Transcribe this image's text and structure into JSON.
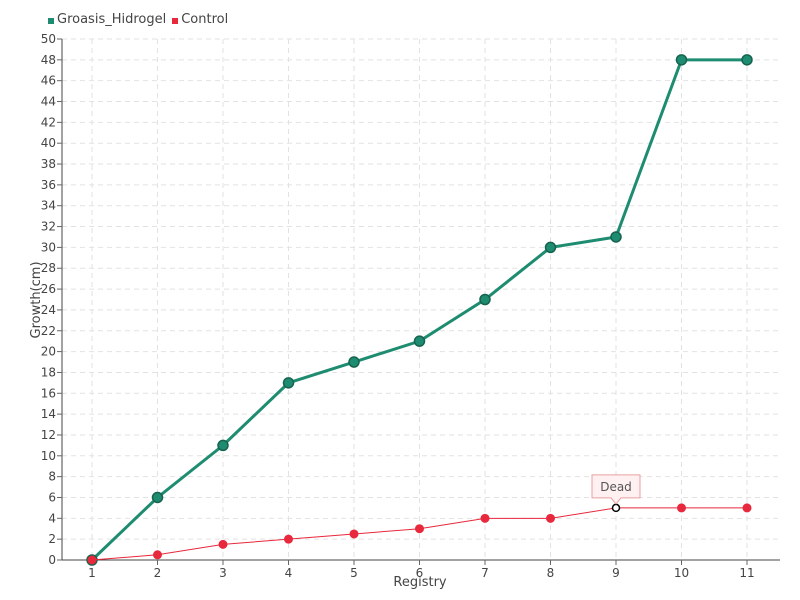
{
  "chart_data": {
    "type": "line",
    "x": [
      1,
      2,
      3,
      4,
      5,
      6,
      7,
      8,
      9,
      10,
      11
    ],
    "series": [
      {
        "name": "Groasis_Hidrogel",
        "color": "#1e8c70",
        "values": [
          0,
          6,
          11,
          17,
          19,
          21,
          25,
          30,
          31,
          48,
          48
        ]
      },
      {
        "name": "Control",
        "color": "#e8283c",
        "values": [
          0,
          0.5,
          1.5,
          2,
          2.5,
          3,
          4,
          4,
          5,
          5,
          5
        ]
      }
    ],
    "xlabel": "Registry",
    "ylabel": "Growth(cm)",
    "ylim": [
      0,
      50
    ],
    "ytick_step": 2,
    "grid": true,
    "legend_position": "top-left",
    "annotations": [
      {
        "series": "Control",
        "x": 9,
        "y": 5,
        "text": "Dead"
      }
    ]
  }
}
